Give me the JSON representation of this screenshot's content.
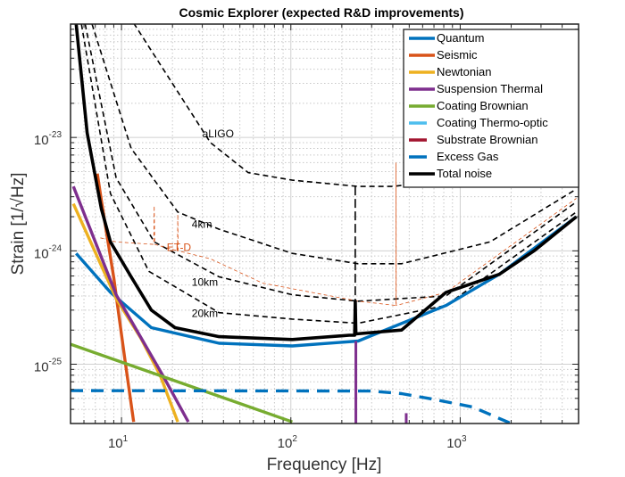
{
  "chart_data": {
    "type": "line",
    "title": "Cosmic Explorer (expected R&D improvements)",
    "xlabel": "Frequency [Hz]",
    "ylabel": "Strain [1/√Hz]",
    "xscale": "log",
    "yscale": "log",
    "xlim": [
      5,
      5000
    ],
    "ylim": [
      3e-26,
      1e-22
    ],
    "grid": true,
    "minor_grid": true,
    "legend_placement": "top-right",
    "xticks": [
      {
        "value": 10,
        "base": "10",
        "exp": "1"
      },
      {
        "value": 100,
        "base": "10",
        "exp": "2"
      },
      {
        "value": 1000,
        "base": "10",
        "exp": "3"
      }
    ],
    "yticks": [
      {
        "value": 1e-25,
        "base": "10",
        "exp": "-25"
      },
      {
        "value": 1e-24,
        "base": "10",
        "exp": "-24"
      },
      {
        "value": 1e-23,
        "base": "10",
        "exp": "-23"
      }
    ],
    "series": [
      {
        "name": "Quantum",
        "color": "#0072BD",
        "style": "solid",
        "points": [
          [
            5.4,
            9.5e-25
          ],
          [
            8.6,
            4.3e-25
          ],
          [
            15,
            2.1e-25
          ],
          [
            37.7,
            1.53e-25
          ],
          [
            102,
            1.45e-25
          ],
          [
            250,
            1.6e-25
          ],
          [
            825,
            3.3e-25
          ],
          [
            1700,
            6.2e-25
          ],
          [
            4850,
            2e-24
          ]
        ]
      },
      {
        "name": "Seismic",
        "color": "#D95319",
        "style": "solid",
        "points": [
          [
            7.2,
            4.8e-24
          ],
          [
            7.6,
            2.8e-24
          ],
          [
            9,
            5.8e-25
          ],
          [
            10.5,
            1.07e-25
          ],
          [
            11.8,
            3.1e-26
          ]
        ]
      },
      {
        "name": "Newtonian",
        "color": "#EDB120",
        "style": "solid",
        "points": [
          [
            5.2,
            2.6e-24
          ],
          [
            9.3,
            3.8e-25
          ],
          [
            13,
            1.7e-25
          ],
          [
            16.9,
            8e-26
          ],
          [
            21.5,
            3.1e-26
          ]
        ]
      },
      {
        "name": "Suspension Thermal",
        "color": "#7E2F8E",
        "style": "solid",
        "points": [
          [
            5.2,
            3.7e-24
          ],
          [
            9.3,
            4.1e-25
          ],
          [
            17.5,
            8e-26
          ],
          [
            24.8,
            3.1e-26
          ]
        ],
        "peaks": [
          {
            "f": 242,
            "top": 1.6e-25
          },
          {
            "f": 480,
            "top": 3.7e-26
          }
        ]
      },
      {
        "name": "Coating Brownian",
        "color": "#77AC30",
        "style": "solid",
        "points": [
          [
            5,
            1.5e-25
          ],
          [
            102,
            3.1e-26
          ]
        ]
      },
      {
        "name": "Coating Thermo-optic",
        "color": "#4DBEEE",
        "style": "solid",
        "points": []
      },
      {
        "name": "Substrate Brownian",
        "color": "#A2142F",
        "style": "solid",
        "points": []
      },
      {
        "name": "Excess Gas",
        "color": "#0072BD",
        "style": "dashed",
        "points": [
          [
            5,
            5.85e-26
          ],
          [
            300,
            5.8e-26
          ],
          [
            450,
            5.5e-26
          ],
          [
            650,
            5e-26
          ],
          [
            1180,
            4.2e-26
          ],
          [
            1900,
            3.1e-26
          ],
          [
            2100,
            2.9e-26
          ]
        ]
      },
      {
        "name": "Total noise",
        "color": "#000000",
        "style": "solid",
        "points": [
          [
            5.4,
            1e-22
          ],
          [
            6.27,
            1.1e-23
          ],
          [
            7.6,
            2.35e-24
          ],
          [
            8.6,
            1.2e-24
          ],
          [
            11.4,
            5.9e-25
          ],
          [
            15,
            3e-25
          ],
          [
            20.7,
            2.1e-25
          ],
          [
            37.7,
            1.75e-25
          ],
          [
            102,
            1.65e-25
          ],
          [
            221,
            1.8e-25
          ],
          [
            238,
            1.8e-25
          ],
          [
            240,
            3.6e-25
          ],
          [
            242,
            1.85e-25
          ],
          [
            450,
            2e-25
          ],
          [
            825,
            4.3e-25
          ],
          [
            1700,
            6.2e-25
          ],
          [
            2730,
            1e-24
          ],
          [
            4850,
            2e-24
          ]
        ]
      }
    ],
    "reference_curves": [
      {
        "label": "aLIGO",
        "color": "#000000",
        "style": "dashed",
        "points": [
          [
            11.8,
            1.02e-22
          ],
          [
            33.5,
            9e-24
          ],
          [
            56,
            4.9e-24
          ],
          [
            102,
            4.2e-24
          ],
          [
            250,
            3.7e-24
          ],
          [
            400,
            3.7e-24
          ],
          [
            800,
            4.2e-24
          ],
          [
            2150,
            8e-24
          ],
          [
            4850,
            1.65e-23
          ]
        ]
      },
      {
        "label": "4km",
        "color": "#000000",
        "style": "dashed",
        "points": [
          [
            6.7,
            1e-22
          ],
          [
            11.4,
            8e-24
          ],
          [
            21.5,
            2.2e-24
          ],
          [
            37.7,
            1.55e-24
          ],
          [
            102,
            9.5e-25
          ],
          [
            250,
            7.7e-25
          ],
          [
            450,
            7.7e-25
          ],
          [
            1500,
            1.2e-24
          ],
          [
            4850,
            3.5e-24
          ]
        ]
      },
      {
        "label": "10km",
        "color": "#000000",
        "style": "dashed",
        "points": [
          [
            6.1,
            1e-22
          ],
          [
            9.3,
            4.4e-24
          ],
          [
            15.6,
            1.2e-24
          ],
          [
            37.7,
            5.9e-25
          ],
          [
            102,
            4.1e-25
          ],
          [
            250,
            3.6e-25
          ],
          [
            825,
            4e-25
          ],
          [
            4850,
            2.7e-24
          ]
        ]
      },
      {
        "label": "20km",
        "color": "#000000",
        "style": "dashed",
        "points": [
          [
            5.8,
            1e-22
          ],
          [
            8.6,
            3.2e-24
          ],
          [
            14.5,
            6.6e-25
          ],
          [
            37.7,
            2.85e-25
          ],
          [
            102,
            2.5e-25
          ],
          [
            250,
            2.3e-25
          ],
          [
            825,
            3.3e-25
          ],
          [
            4850,
            2.2e-24
          ]
        ]
      },
      {
        "label": "ET-D",
        "color": "#D95319",
        "style": "dashed-thin",
        "points": [
          [
            7.5,
            1.3e-24
          ],
          [
            9.3,
            1.2e-24
          ],
          [
            15.5,
            1.14e-24
          ],
          [
            15.6,
            2.5e-24
          ],
          [
            15.7,
            1.14e-24
          ],
          [
            21.4,
            1e-24
          ],
          [
            21.5,
            2.1e-24
          ],
          [
            21.6,
            1e-24
          ],
          [
            33.5,
            8.5e-25
          ],
          [
            68,
            5.2e-25
          ],
          [
            250,
            3.6e-25
          ],
          [
            417,
            3.3e-25
          ],
          [
            418,
            6e-24
          ],
          [
            419,
            3.3e-25
          ],
          [
            825,
            4.3e-25
          ],
          [
            4850,
            2.9e-24
          ]
        ]
      }
    ]
  }
}
